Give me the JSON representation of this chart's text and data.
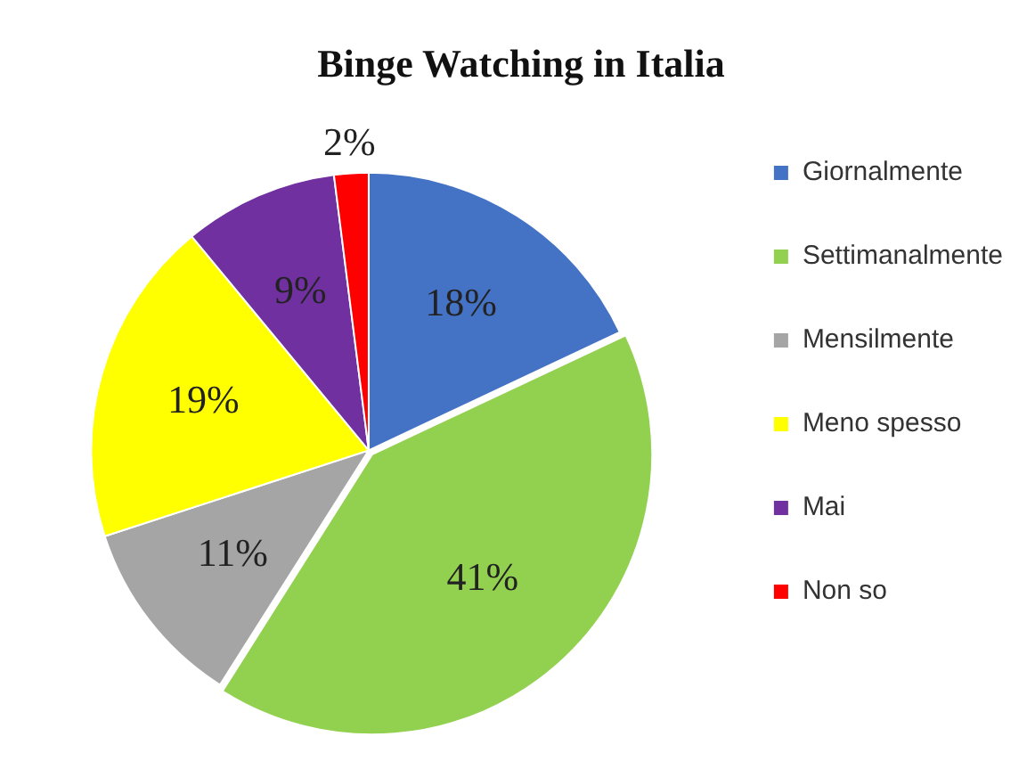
{
  "chart_data": {
    "type": "pie",
    "title": "Binge Watching in Italia",
    "categories": [
      "Giornalmente",
      "Settimanalmente",
      "Mensilmente",
      "Meno spesso",
      "Mai",
      "Non so"
    ],
    "values": [
      18,
      41,
      11,
      19,
      9,
      2
    ],
    "colors": [
      "#4472c4",
      "#92d050",
      "#a5a5a5",
      "#ffff00",
      "#7030a0",
      "#ff0000"
    ],
    "value_labels": [
      "18%",
      "41%",
      "11%",
      "19%",
      "9%",
      "2%"
    ],
    "legend": "right"
  }
}
